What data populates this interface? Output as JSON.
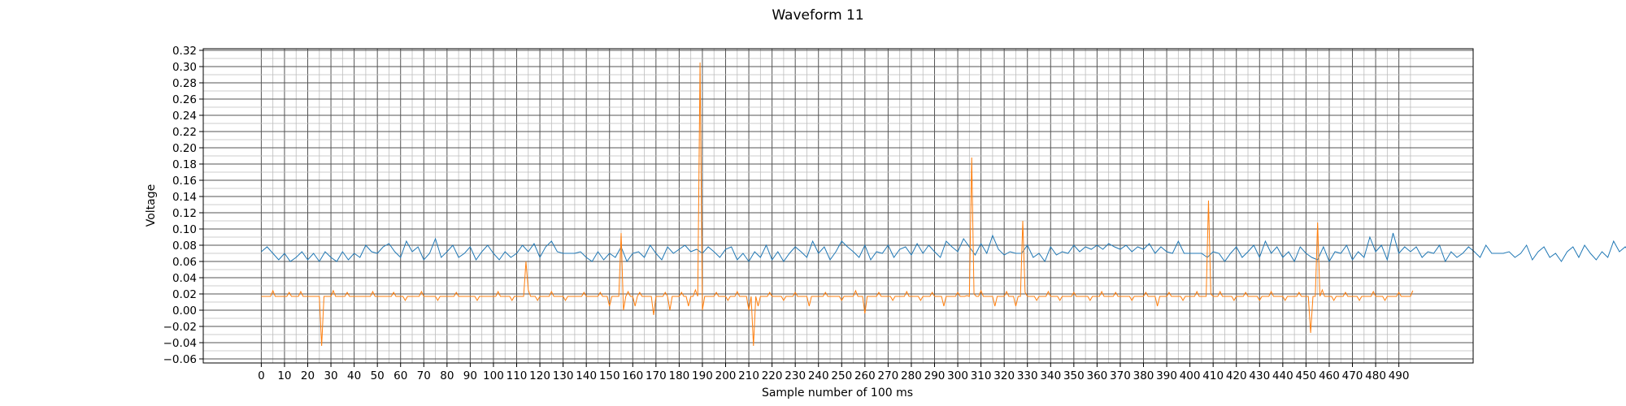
{
  "chart_data": {
    "type": "line",
    "title": "Waveform 11",
    "xlabel": "Sample number of 100 ms",
    "ylabel": "Voltage",
    "xlim": [
      -25,
      522
    ],
    "ylim": [
      -0.065,
      0.322
    ],
    "grid": true,
    "x_major_ticks": [
      0,
      10,
      20,
      30,
      40,
      50,
      60,
      70,
      80,
      90,
      100,
      110,
      120,
      130,
      140,
      150,
      160,
      170,
      180,
      190,
      200,
      210,
      220,
      230,
      240,
      250,
      260,
      270,
      280,
      290,
      300,
      310,
      320,
      330,
      340,
      350,
      360,
      370,
      380,
      390,
      400,
      410,
      420,
      430,
      440,
      450,
      460,
      470,
      480,
      490
    ],
    "x_tick_labels": [
      "0",
      "10",
      "20",
      "30",
      "40",
      "50",
      "60",
      "70",
      "80",
      "90",
      "100",
      "110",
      "120",
      "130",
      "140",
      "150",
      "160",
      "170",
      "180",
      "190",
      "200",
      "210",
      "220",
      "230",
      "240",
      "250",
      "260",
      "270",
      "280",
      "290",
      "300",
      "310",
      "320",
      "330",
      "340",
      "350",
      "360",
      "370",
      "380",
      "390",
      "400",
      "410",
      "420",
      "430",
      "440",
      "450",
      "460",
      "470",
      "480",
      "490"
    ],
    "y_ticks": [
      -0.06,
      -0.04,
      -0.02,
      0.0,
      0.02,
      0.04,
      0.06,
      0.08,
      0.1,
      0.12,
      0.14,
      0.16,
      0.18,
      0.2,
      0.22,
      0.24,
      0.26,
      0.28,
      0.3,
      0.32
    ],
    "y_tick_labels": [
      "−0.06",
      "−0.04",
      "−0.02",
      "0.00",
      "0.02",
      "0.04",
      "0.06",
      "0.08",
      "0.10",
      "0.12",
      "0.14",
      "0.16",
      "0.18",
      "0.20",
      "0.22",
      "0.24",
      "0.26",
      "0.28",
      "0.30",
      "0.32"
    ],
    "series": [
      {
        "color": "#1f77b4",
        "x_start": 0,
        "x_step": 2.5,
        "values": [
          0.072,
          0.078,
          0.07,
          0.062,
          0.07,
          0.06,
          0.065,
          0.072,
          0.062,
          0.07,
          0.06,
          0.072,
          0.065,
          0.06,
          0.072,
          0.062,
          0.07,
          0.065,
          0.08,
          0.072,
          0.07,
          0.078,
          0.082,
          0.072,
          0.065,
          0.085,
          0.072,
          0.078,
          0.062,
          0.07,
          0.088,
          0.065,
          0.072,
          0.08,
          0.065,
          0.07,
          0.078,
          0.062,
          0.072,
          0.08,
          0.07,
          0.062,
          0.072,
          0.065,
          0.07,
          0.08,
          0.072,
          0.082,
          0.065,
          0.078,
          0.085,
          0.072,
          0.07,
          0.07,
          0.07,
          0.072,
          0.065,
          0.06,
          0.072,
          0.062,
          0.07,
          0.065,
          0.078,
          0.06,
          0.07,
          0.072,
          0.065,
          0.08,
          0.07,
          0.062,
          0.078,
          0.07,
          0.075,
          0.08,
          0.072,
          0.075,
          0.07,
          0.078,
          0.072,
          0.065,
          0.075,
          0.078,
          0.062,
          0.07,
          0.06,
          0.072,
          0.065,
          0.08,
          0.062,
          0.072,
          0.06,
          0.07,
          0.078,
          0.072,
          0.065,
          0.085,
          0.07,
          0.078,
          0.062,
          0.072,
          0.085,
          0.078,
          0.072,
          0.065,
          0.08,
          0.062,
          0.072,
          0.07,
          0.08,
          0.065,
          0.075,
          0.078,
          0.068,
          0.082,
          0.07,
          0.08,
          0.072,
          0.065,
          0.085,
          0.078,
          0.072,
          0.088,
          0.078,
          0.068,
          0.082,
          0.07,
          0.092,
          0.075,
          0.068,
          0.072,
          0.07,
          0.07,
          0.08,
          0.065,
          0.07,
          0.06,
          0.078,
          0.068,
          0.072,
          0.07,
          0.08,
          0.072,
          0.078,
          0.075,
          0.08,
          0.075,
          0.082,
          0.078,
          0.075,
          0.08,
          0.072,
          0.078,
          0.075,
          0.082,
          0.07,
          0.078,
          0.072,
          0.07,
          0.085,
          0.07,
          0.07,
          0.07,
          0.07,
          0.065,
          0.072,
          0.07,
          0.06,
          0.07,
          0.078,
          0.065,
          0.072,
          0.08,
          0.065,
          0.085,
          0.07,
          0.078,
          0.065,
          0.072,
          0.06,
          0.078,
          0.07,
          0.065,
          0.062,
          0.078,
          0.06,
          0.072,
          0.07,
          0.08,
          0.062,
          0.072,
          0.065,
          0.09,
          0.072,
          0.08,
          0.062,
          0.095,
          0.07,
          0.078,
          0.072,
          0.078,
          0.065,
          0.072,
          0.07,
          0.08,
          0.06,
          0.072,
          0.065,
          0.07,
          0.078,
          0.072,
          0.065,
          0.08,
          0.07,
          0.07,
          0.07,
          0.072,
          0.065,
          0.07,
          0.08,
          0.062,
          0.072,
          0.078,
          0.065,
          0.07,
          0.06,
          0.072,
          0.078,
          0.065,
          0.08,
          0.07,
          0.062,
          0.072,
          0.065,
          0.085,
          0.072,
          0.078,
          0.07,
          0.085,
          0.072,
          0.082,
          0.075,
          0.072,
          0.08,
          0.07,
          0.078,
          0.07,
          0.062,
          0.07,
          0.078,
          0.065,
          0.072,
          0.08,
          0.07,
          0.085,
          0.075,
          0.078,
          0.08,
          0.072,
          0.078,
          0.082,
          0.07,
          0.078,
          0.062,
          0.072,
          0.06,
          0.078,
          0.065,
          0.072,
          0.062,
          0.078,
          0.07,
          0.062,
          0.072,
          0.065,
          0.08,
          0.07,
          0.078,
          0.065,
          0.072,
          0.07,
          0.065,
          0.07,
          0.065,
          0.078,
          0.072,
          0.062,
          0.07,
          0.078,
          0.07,
          0.062,
          0.072,
          0.065,
          0.08,
          0.06,
          0.07,
          0.078,
          0.072,
          0.065,
          0.088,
          0.072,
          0.078,
          0.062,
          0.072,
          0.08,
          0.07,
          0.078,
          0.065,
          0.072,
          0.08,
          0.068,
          0.082,
          0.078,
          0.07,
          0.082,
          0.075,
          0.072,
          0.08,
          0.072,
          0.07,
          0.062,
          0.072,
          0.06,
          0.07,
          0.078,
          0.065,
          0.072,
          0.08,
          0.065,
          0.072,
          0.078,
          0.068,
          0.082,
          0.072,
          0.078,
          0.07,
          0.062,
          0.072,
          0.065,
          0.07,
          0.062,
          0.072,
          0.07,
          0.08,
          0.062,
          0.072,
          0.06,
          0.07,
          0.078,
          0.072,
          0.065,
          0.082,
          0.07,
          0.085,
          0.068,
          0.072,
          0.078,
          0.065,
          0.07,
          0.085,
          0.072,
          0.078,
          0.07,
          0.082,
          0.07,
          0.078,
          0.065,
          0.072,
          0.07,
          0.065,
          0.078,
          0.06,
          0.072,
          0.07,
          0.065,
          0.078,
          0.06,
          0.072,
          0.062,
          0.07,
          0.06,
          0.078,
          0.072,
          0.065,
          0.08,
          0.062,
          0.07,
          0.072,
          0.08,
          0.07,
          0.078,
          0.072,
          0.065,
          0.07,
          0.078,
          0.072,
          0.085,
          0.07,
          0.065,
          0.078,
          0.07,
          0.072,
          0.065,
          0.072,
          0.08,
          0.068,
          0.082,
          0.072,
          0.07,
          0.078,
          0.062,
          0.072,
          0.06,
          0.07,
          0.072,
          0.065,
          0.07,
          0.085,
          0.07,
          0.078,
          0.062,
          0.07,
          0.06,
          0.072,
          0.065,
          0.08,
          0.07,
          0.062,
          0.072,
          0.08,
          0.065,
          0.07,
          0.078,
          0.072,
          0.07,
          0.065,
          0.07,
          0.078,
          0.072,
          0.065,
          0.082,
          0.07,
          0.075,
          0.082,
          0.075,
          0.08,
          0.085,
          0.072,
          0.085,
          0.078,
          0.082,
          0.085,
          0.07,
          0.08,
          0.078,
          0.072,
          0.078,
          0.07,
          0.06,
          0.07,
          0.062,
          0.072,
          0.062,
          0.065,
          0.07,
          0.072,
          0.065,
          0.065,
          0.07,
          0.072,
          0.07,
          0.065,
          0.07,
          0.08
        ]
      },
      {
        "color": "#ff7f0e",
        "x_start": 0,
        "x_step": 1,
        "spikes": [
          [
            5,
            0.024
          ],
          [
            12,
            0.022
          ],
          [
            17,
            0.023
          ],
          [
            26,
            -0.044
          ],
          [
            31,
            0.024
          ],
          [
            37,
            0.022
          ],
          [
            48,
            0.023
          ],
          [
            57,
            0.022
          ],
          [
            62,
            0.012
          ],
          [
            69,
            0.023
          ],
          [
            76,
            0.012
          ],
          [
            84,
            0.022
          ],
          [
            93,
            0.012
          ],
          [
            102,
            0.023
          ],
          [
            108,
            0.012
          ],
          [
            114,
            0.06
          ],
          [
            115,
            0.025
          ],
          [
            119,
            0.012
          ],
          [
            125,
            0.023
          ],
          [
            131,
            0.012
          ],
          [
            139,
            0.022
          ],
          [
            146,
            0.022
          ],
          [
            150,
            0.005
          ],
          [
            155,
            0.095
          ],
          [
            156,
            0.0
          ],
          [
            158,
            0.023
          ],
          [
            161,
            0.005
          ],
          [
            163,
            0.022
          ],
          [
            169,
            -0.006
          ],
          [
            174,
            0.022
          ],
          [
            176,
            0.0
          ],
          [
            181,
            0.022
          ],
          [
            184,
            0.005
          ],
          [
            187,
            0.025
          ],
          [
            189,
            0.305
          ],
          [
            190,
            0.0
          ],
          [
            196,
            0.022
          ],
          [
            201,
            0.012
          ],
          [
            205,
            0.023
          ],
          [
            210,
            0.0
          ],
          [
            212,
            -0.044
          ],
          [
            214,
            0.005
          ],
          [
            219,
            0.022
          ],
          [
            225,
            0.012
          ],
          [
            230,
            0.022
          ],
          [
            236,
            0.005
          ],
          [
            243,
            0.022
          ],
          [
            250,
            0.012
          ],
          [
            256,
            0.024
          ],
          [
            260,
            -0.004
          ],
          [
            266,
            0.022
          ],
          [
            272,
            0.012
          ],
          [
            278,
            0.023
          ],
          [
            284,
            0.012
          ],
          [
            289,
            0.022
          ],
          [
            294,
            0.005
          ],
          [
            300,
            0.022
          ],
          [
            304,
            0.018
          ],
          [
            306,
            0.188
          ],
          [
            307,
            0.02
          ],
          [
            310,
            0.024
          ],
          [
            316,
            0.005
          ],
          [
            321,
            0.023
          ],
          [
            325,
            0.005
          ],
          [
            328,
            0.11
          ],
          [
            329,
            0.022
          ],
          [
            334,
            0.012
          ],
          [
            339,
            0.023
          ],
          [
            344,
            0.012
          ],
          [
            350,
            0.022
          ],
          [
            357,
            0.012
          ],
          [
            362,
            0.023
          ],
          [
            368,
            0.022
          ],
          [
            375,
            0.012
          ],
          [
            381,
            0.022
          ],
          [
            386,
            0.005
          ],
          [
            391,
            0.022
          ],
          [
            397,
            0.012
          ],
          [
            403,
            0.023
          ],
          [
            408,
            0.135
          ],
          [
            409,
            0.02
          ],
          [
            413,
            0.023
          ],
          [
            419,
            0.012
          ],
          [
            424,
            0.022
          ],
          [
            430,
            0.012
          ],
          [
            435,
            0.023
          ],
          [
            441,
            0.012
          ],
          [
            447,
            0.022
          ],
          [
            452,
            -0.028
          ],
          [
            455,
            0.108
          ],
          [
            457,
            0.025
          ],
          [
            462,
            0.012
          ],
          [
            467,
            0.022
          ],
          [
            473,
            0.012
          ],
          [
            479,
            0.023
          ],
          [
            484,
            0.012
          ],
          [
            490,
            0.022
          ],
          [
            496,
            0.024
          ]
        ],
        "baseline": 0.017,
        "length": 497
      }
    ]
  }
}
